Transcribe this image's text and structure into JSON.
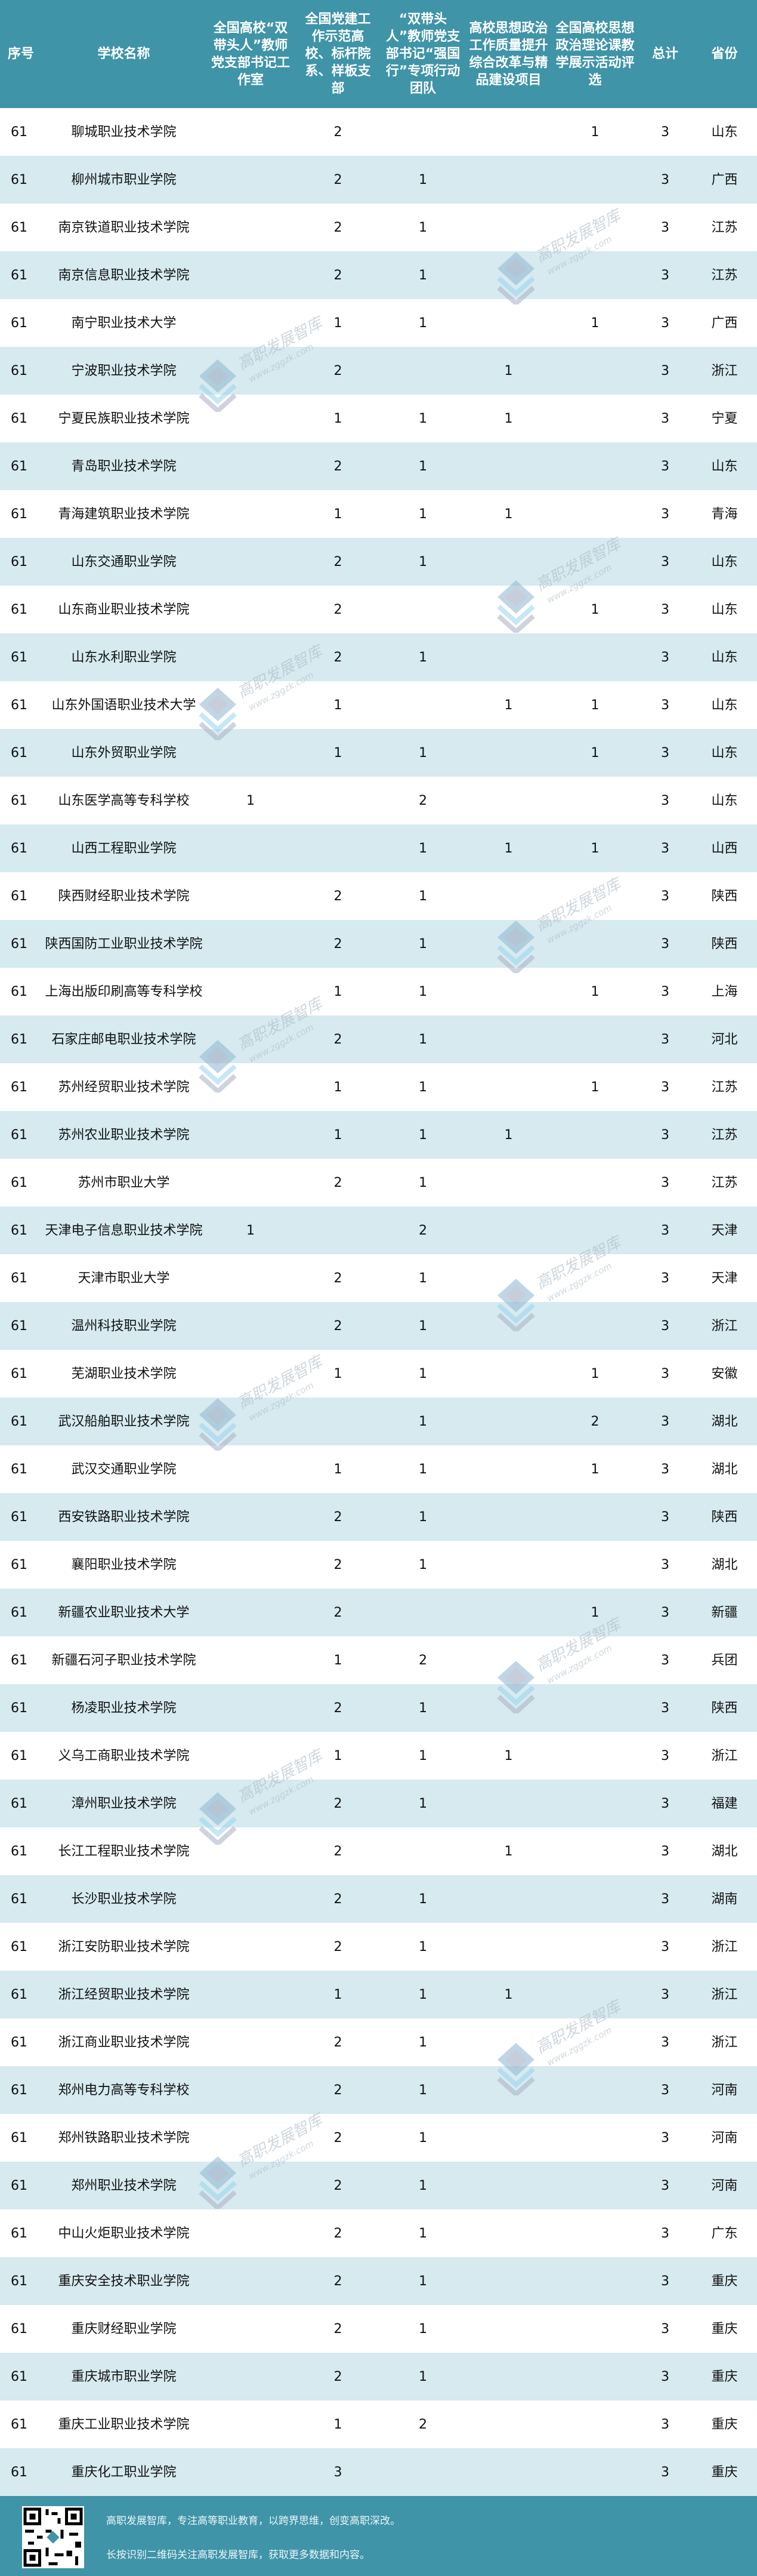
{
  "colors": {
    "header_bg": "#3f94a8",
    "stripe": "#d6eaf0",
    "footer_bg": "#3f94a8"
  },
  "table": {
    "headers": [
      "序号",
      "学校名称",
      "全国高校“双带头人”教师党支部书记工作室",
      "全国党建工作示范高校、标杆院系、样板支部",
      "“双带头人”教师党支部书记“强国行”专项行动团队",
      "高校思想政治工作质量提升综合改革与精品建设项目",
      "全国高校思想政治理论课教学展示活动评选",
      "总计",
      "省份"
    ],
    "rows": [
      [
        "61",
        "聊城职业技术学院",
        "",
        "2",
        "",
        "",
        "1",
        "3",
        "山东"
      ],
      [
        "61",
        "柳州城市职业学院",
        "",
        "2",
        "1",
        "",
        "",
        "3",
        "广西"
      ],
      [
        "61",
        "南京铁道职业技术学院",
        "",
        "2",
        "1",
        "",
        "",
        "3",
        "江苏"
      ],
      [
        "61",
        "南京信息职业技术学院",
        "",
        "2",
        "1",
        "",
        "",
        "3",
        "江苏"
      ],
      [
        "61",
        "南宁职业技术大学",
        "",
        "1",
        "1",
        "",
        "1",
        "3",
        "广西"
      ],
      [
        "61",
        "宁波职业技术学院",
        "",
        "2",
        "",
        "1",
        "",
        "3",
        "浙江"
      ],
      [
        "61",
        "宁夏民族职业技术学院",
        "",
        "1",
        "1",
        "1",
        "",
        "3",
        "宁夏"
      ],
      [
        "61",
        "青岛职业技术学院",
        "",
        "2",
        "1",
        "",
        "",
        "3",
        "山东"
      ],
      [
        "61",
        "青海建筑职业技术学院",
        "",
        "1",
        "1",
        "1",
        "",
        "3",
        "青海"
      ],
      [
        "61",
        "山东交通职业学院",
        "",
        "2",
        "1",
        "",
        "",
        "3",
        "山东"
      ],
      [
        "61",
        "山东商业职业技术学院",
        "",
        "2",
        "",
        "",
        "1",
        "3",
        "山东"
      ],
      [
        "61",
        "山东水利职业学院",
        "",
        "2",
        "1",
        "",
        "",
        "3",
        "山东"
      ],
      [
        "61",
        "山东外国语职业技术大学",
        "",
        "1",
        "",
        "1",
        "1",
        "3",
        "山东"
      ],
      [
        "61",
        "山东外贸职业学院",
        "",
        "1",
        "1",
        "",
        "1",
        "3",
        "山东"
      ],
      [
        "61",
        "山东医学高等专科学校",
        "1",
        "",
        "2",
        "",
        "",
        "3",
        "山东"
      ],
      [
        "61",
        "山西工程职业学院",
        "",
        "",
        "1",
        "1",
        "1",
        "3",
        "山西"
      ],
      [
        "61",
        "陕西财经职业技术学院",
        "",
        "2",
        "1",
        "",
        "",
        "3",
        "陕西"
      ],
      [
        "61",
        "陕西国防工业职业技术学院",
        "",
        "2",
        "1",
        "",
        "",
        "3",
        "陕西"
      ],
      [
        "61",
        "上海出版印刷高等专科学校",
        "",
        "1",
        "1",
        "",
        "1",
        "3",
        "上海"
      ],
      [
        "61",
        "石家庄邮电职业技术学院",
        "",
        "2",
        "1",
        "",
        "",
        "3",
        "河北"
      ],
      [
        "61",
        "苏州经贸职业技术学院",
        "",
        "1",
        "1",
        "",
        "1",
        "3",
        "江苏"
      ],
      [
        "61",
        "苏州农业职业技术学院",
        "",
        "1",
        "1",
        "1",
        "",
        "3",
        "江苏"
      ],
      [
        "61",
        "苏州市职业大学",
        "",
        "2",
        "1",
        "",
        "",
        "3",
        "江苏"
      ],
      [
        "61",
        "天津电子信息职业技术学院",
        "1",
        "",
        "2",
        "",
        "",
        "3",
        "天津"
      ],
      [
        "61",
        "天津市职业大学",
        "",
        "2",
        "1",
        "",
        "",
        "3",
        "天津"
      ],
      [
        "61",
        "温州科技职业学院",
        "",
        "2",
        "1",
        "",
        "",
        "3",
        "浙江"
      ],
      [
        "61",
        "芜湖职业技术学院",
        "",
        "1",
        "1",
        "",
        "1",
        "3",
        "安徽"
      ],
      [
        "61",
        "武汉船舶职业技术学院",
        "",
        "",
        "1",
        "",
        "2",
        "3",
        "湖北"
      ],
      [
        "61",
        "武汉交通职业学院",
        "",
        "1",
        "1",
        "",
        "1",
        "3",
        "湖北"
      ],
      [
        "61",
        "西安铁路职业技术学院",
        "",
        "2",
        "1",
        "",
        "",
        "3",
        "陕西"
      ],
      [
        "61",
        "襄阳职业技术学院",
        "",
        "2",
        "1",
        "",
        "",
        "3",
        "湖北"
      ],
      [
        "61",
        "新疆农业职业技术大学",
        "",
        "2",
        "",
        "",
        "1",
        "3",
        "新疆"
      ],
      [
        "61",
        "新疆石河子职业技术学院",
        "",
        "1",
        "2",
        "",
        "",
        "3",
        "兵团"
      ],
      [
        "61",
        "杨凌职业技术学院",
        "",
        "2",
        "1",
        "",
        "",
        "3",
        "陕西"
      ],
      [
        "61",
        "义乌工商职业技术学院",
        "",
        "1",
        "1",
        "1",
        "",
        "3",
        "浙江"
      ],
      [
        "61",
        "漳州职业技术学院",
        "",
        "2",
        "1",
        "",
        "",
        "3",
        "福建"
      ],
      [
        "61",
        "长江工程职业技术学院",
        "",
        "2",
        "",
        "1",
        "",
        "3",
        "湖北"
      ],
      [
        "61",
        "长沙职业技术学院",
        "",
        "2",
        "1",
        "",
        "",
        "3",
        "湖南"
      ],
      [
        "61",
        "浙江安防职业技术学院",
        "",
        "2",
        "1",
        "",
        "",
        "3",
        "浙江"
      ],
      [
        "61",
        "浙江经贸职业技术学院",
        "",
        "1",
        "1",
        "1",
        "",
        "3",
        "浙江"
      ],
      [
        "61",
        "浙江商业职业技术学院",
        "",
        "2",
        "1",
        "",
        "",
        "3",
        "浙江"
      ],
      [
        "61",
        "郑州电力高等专科学校",
        "",
        "2",
        "1",
        "",
        "",
        "3",
        "河南"
      ],
      [
        "61",
        "郑州铁路职业技术学院",
        "",
        "2",
        "1",
        "",
        "",
        "3",
        "河南"
      ],
      [
        "61",
        "郑州职业技术学院",
        "",
        "2",
        "1",
        "",
        "",
        "3",
        "河南"
      ],
      [
        "61",
        "中山火炬职业技术学院",
        "",
        "2",
        "1",
        "",
        "",
        "3",
        "广东"
      ],
      [
        "61",
        "重庆安全技术职业学院",
        "",
        "2",
        "1",
        "",
        "",
        "3",
        "重庆"
      ],
      [
        "61",
        "重庆财经职业学院",
        "",
        "2",
        "1",
        "",
        "",
        "3",
        "重庆"
      ],
      [
        "61",
        "重庆城市职业学院",
        "",
        "2",
        "1",
        "",
        "",
        "3",
        "重庆"
      ],
      [
        "61",
        "重庆工业职业技术学院",
        "",
        "1",
        "2",
        "",
        "",
        "3",
        "重庆"
      ],
      [
        "61",
        "重庆化工职业学院",
        "",
        "3",
        "",
        "",
        "",
        "3",
        "重庆"
      ]
    ]
  },
  "watermark": {
    "name": "高职发展智库",
    "url": "www.zggzk.com",
    "icon": "stacked-diamond-logo"
  },
  "footer": {
    "line1": "高职发展智库，专注高等职业教育，以跨界思维，创变高职深改。",
    "line2": "长按识别二维码关注高职发展智库，获取更多数据和内容。",
    "qr_icon": "qr-code"
  }
}
